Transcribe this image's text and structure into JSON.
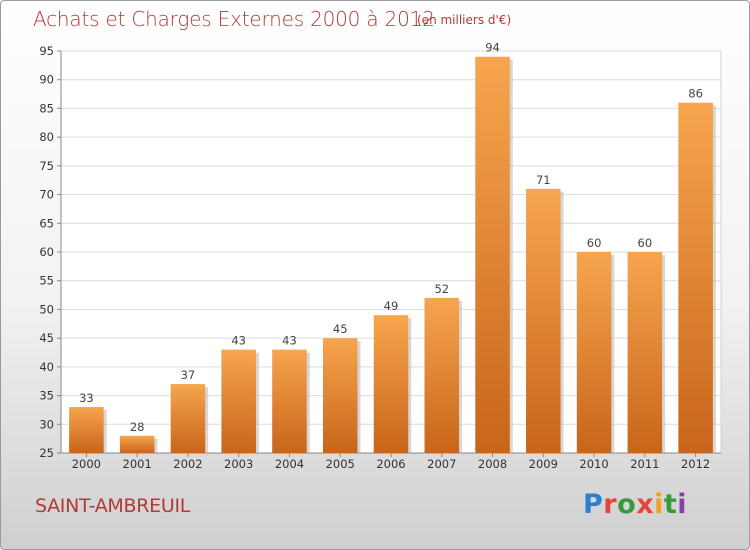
{
  "chart_data": {
    "type": "bar",
    "title": "Achats et Charges Externes 2000 à 2012",
    "subtitle": "(en milliers d'€)",
    "categories": [
      "2000",
      "2001",
      "2002",
      "2003",
      "2004",
      "2005",
      "2006",
      "2007",
      "2008",
      "2009",
      "2010",
      "2011",
      "2012"
    ],
    "values": [
      33,
      28,
      37,
      43,
      43,
      45,
      49,
      52,
      94,
      71,
      60,
      60,
      86
    ],
    "xlabel": "",
    "ylabel": "",
    "ylim": [
      25,
      95
    ],
    "yticks": [
      25,
      30,
      35,
      40,
      45,
      50,
      55,
      60,
      65,
      70,
      75,
      80,
      85,
      90,
      95
    ],
    "grid": true,
    "bar_color_top": "#f7a54e",
    "bar_color_bottom": "#c8651a"
  },
  "commune": "SAINT-AMBREUIL",
  "logo": {
    "letters": [
      "P",
      "r",
      "o",
      "x",
      "i",
      "t",
      "i"
    ]
  },
  "colors": {
    "title": "#b23a35"
  }
}
